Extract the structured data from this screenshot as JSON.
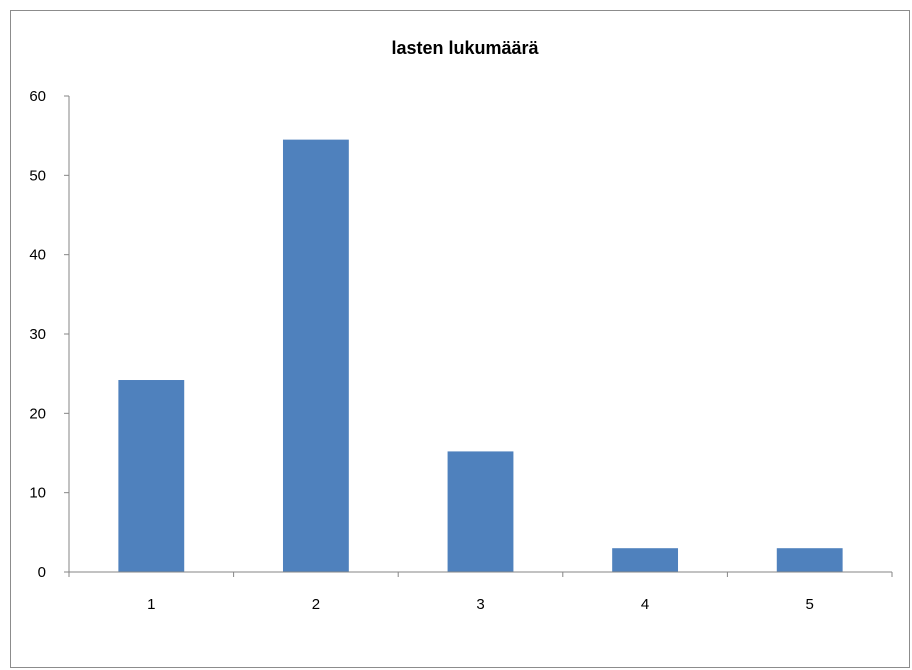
{
  "chart_data": {
    "type": "bar",
    "title": "lasten lukumäärä",
    "xlabel": "",
    "ylabel": "",
    "categories": [
      "1",
      "2",
      "3",
      "4",
      "5"
    ],
    "values": [
      24.2,
      54.5,
      15.2,
      3,
      3
    ],
    "ylim": [
      0,
      60
    ],
    "yticks": [
      "0",
      "10",
      "20",
      "30",
      "40",
      "50",
      "60"
    ],
    "grid": false,
    "legend": "none",
    "bar_color": "#4f81bd",
    "axis_color": "#868686"
  }
}
